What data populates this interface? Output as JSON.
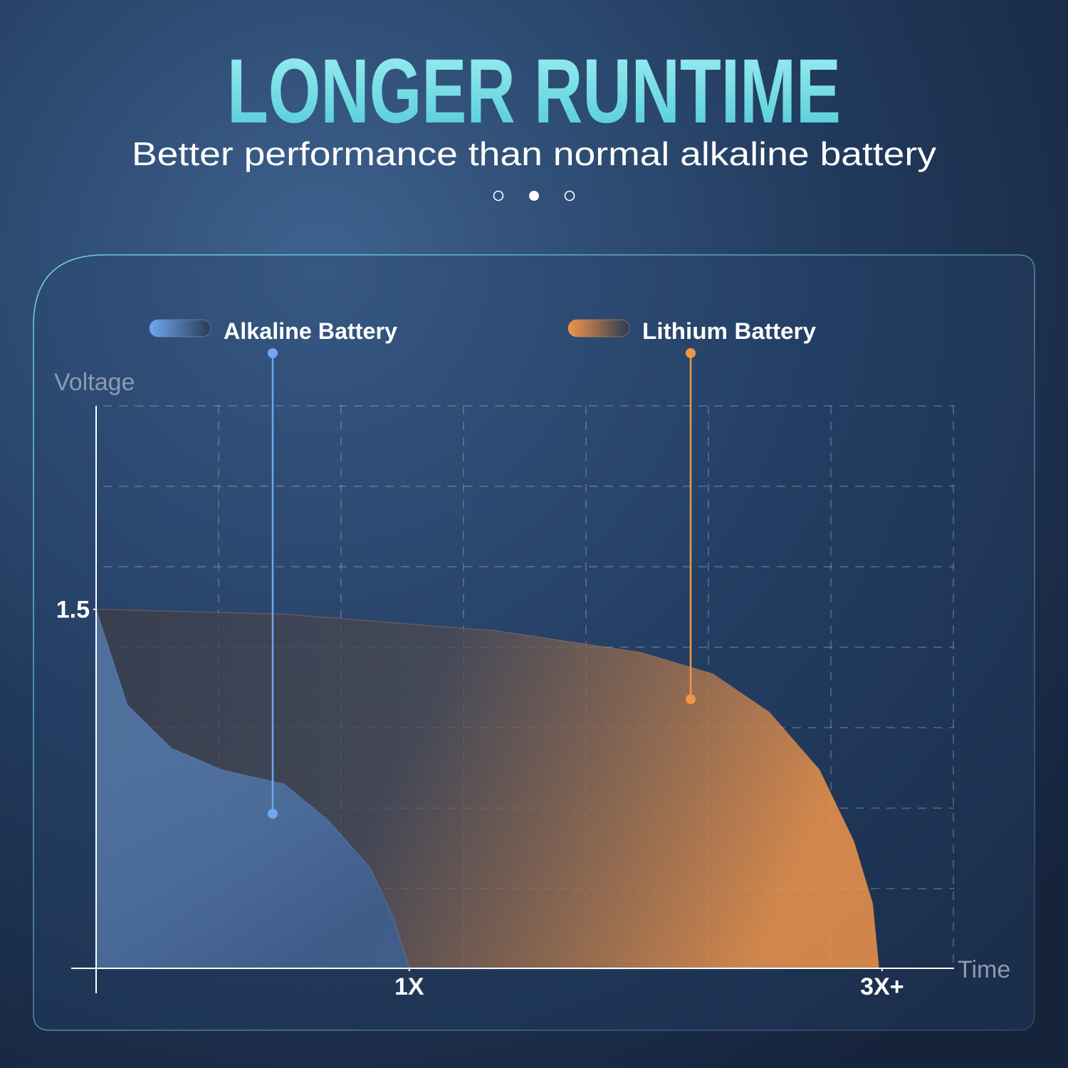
{
  "title": "LONGER RUNTIME",
  "subtitle": "Better performance than normal alkaline battery",
  "chart_data": {
    "type": "area",
    "ylabel": "Voltage",
    "xlabel": "Time",
    "xlim": [
      0,
      2.74
    ],
    "ylim": [
      0,
      2.35
    ],
    "xticks": [
      {
        "value": 1,
        "label": "1X"
      },
      {
        "value": 2.51,
        "label": "3X+"
      }
    ],
    "yticks": [
      1.5
    ],
    "series": [
      {
        "name": "Lithium Battery",
        "color": "#f0954a",
        "x": [
          0,
          0.6,
          1.28,
          1.74,
          1.97,
          2.15,
          2.31,
          2.42,
          2.48,
          2.5
        ],
        "values": [
          1.5,
          1.48,
          1.41,
          1.32,
          1.23,
          1.07,
          0.83,
          0.53,
          0.27,
          0
        ]
      },
      {
        "name": "Alkaline Battery",
        "color": "#6fa8f0",
        "x": [
          0,
          0.02,
          0.1,
          0.24,
          0.4,
          0.6,
          0.74,
          0.875,
          0.95,
          1
        ],
        "values": [
          1.5,
          1.42,
          1.1,
          0.92,
          0.83,
          0.77,
          0.62,
          0.42,
          0.21,
          0
        ]
      }
    ]
  }
}
